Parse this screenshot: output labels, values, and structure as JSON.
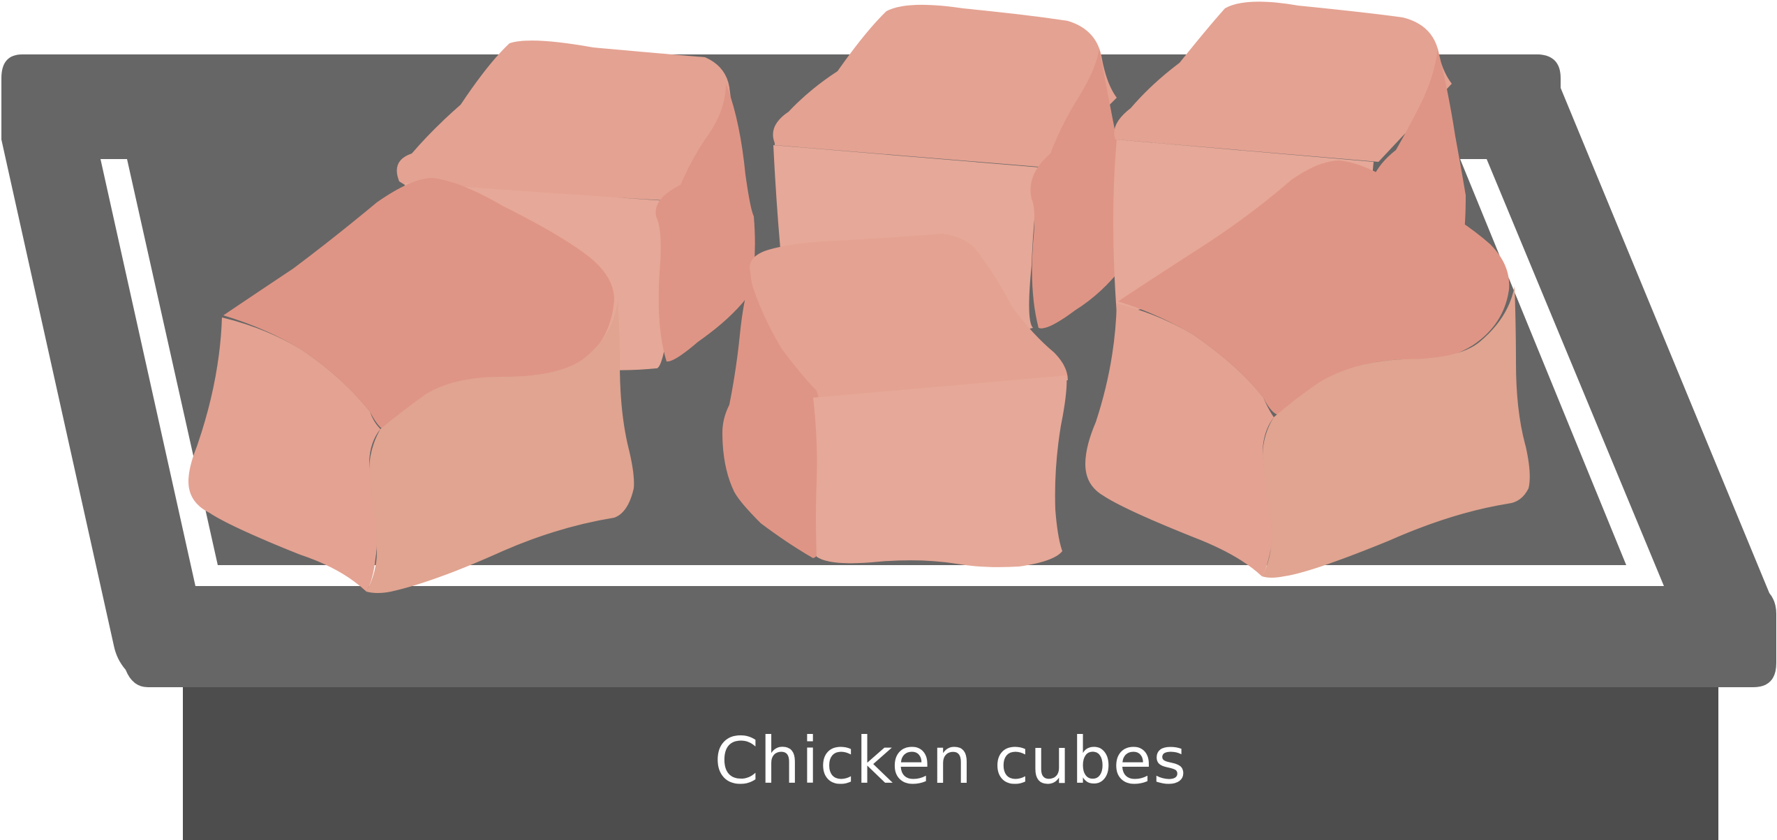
{
  "caption": {
    "text": "Chicken cubes"
  },
  "colors": {
    "tray_dark": "#4d4d4d",
    "tray_mid": "#666666",
    "tray_inner": "#ffffff",
    "meat_light": "#e4a292",
    "meat_face": "#e6a898",
    "meat_shadow": "#df9585",
    "meat_alt": "#e0a490"
  },
  "icons": [
    "tray-icon",
    "chicken-cube-icon"
  ],
  "cube_count": 6
}
